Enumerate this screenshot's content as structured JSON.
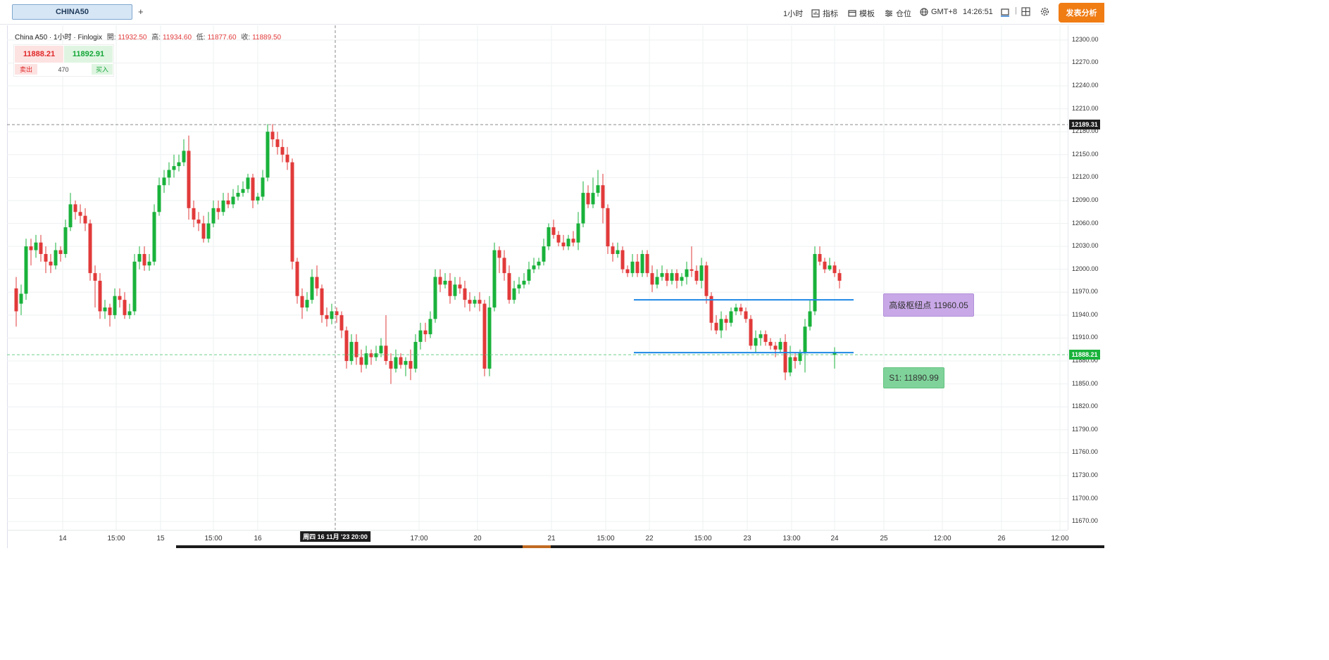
{
  "tabs": {
    "active_label": "CHINA50",
    "add_label": "+"
  },
  "toolbar": {
    "timeframe": "1小时",
    "indicators": "指标",
    "templates": "模板",
    "positions": "仓位",
    "timezone": "GMT+8",
    "clock": "14:26:51",
    "publish": "发表分析"
  },
  "legend": {
    "title": "China A50 · 1小时 · Finlogix",
    "open_label": "開:",
    "open_value": "11932.50",
    "high_label": "高:",
    "high_value": "11934.60",
    "low_label": "低:",
    "low_value": "11877.60",
    "close_label": "收:",
    "close_value": "11889.50"
  },
  "trade_widget": {
    "sell_price": "11888.21",
    "buy_price": "11892.91",
    "sell_label": "卖出",
    "quantity": "470",
    "buy_label": "买入"
  },
  "price_axis": {
    "ticks": [
      "12300.00",
      "12270.00",
      "12240.00",
      "12210.00",
      "12180.00",
      "12150.00",
      "12120.00",
      "12090.00",
      "12060.00",
      "12030.00",
      "12000.00",
      "11970.00",
      "11940.00",
      "11910.00",
      "11880.00",
      "11850.00",
      "11820.00",
      "11790.00",
      "11760.00",
      "11730.00",
      "11700.00",
      "11670.00"
    ],
    "crosshair_price": "12189.31",
    "last_price": "11888.21"
  },
  "time_axis": {
    "ticks": [
      "14",
      "15:00",
      "15",
      "15:00",
      "16",
      "17:00",
      "20",
      "21",
      "15:00",
      "22",
      "15:00",
      "23",
      "13:00",
      "24",
      "25",
      "12:00",
      "26",
      "12:00"
    ],
    "crosshair_time": "周四 16 11月 '23 20:00"
  },
  "annotations": {
    "pivot_label": "高级枢纽点 11960.05",
    "s1_label": "S1: 11890.99"
  },
  "colors": {
    "up": "#19b23b",
    "down": "#e23a3a",
    "level_line": "#1e88e5",
    "pivot_box": "#c9a8e8",
    "s1_box": "#7fd39a",
    "publish": "#f07c14"
  },
  "chart_data": {
    "type": "candlestick",
    "symbol": "China A50",
    "ylim": [
      11660,
      12310
    ],
    "levels": [
      11960.05,
      11890.99
    ],
    "candles": [
      [
        11975,
        11945,
        11990,
        11925
      ],
      [
        11955,
        11968,
        11980,
        11940
      ],
      [
        11968,
        12030,
        12040,
        11960
      ],
      [
        12030,
        12025,
        12040,
        12005
      ],
      [
        12025,
        12035,
        12045,
        12015
      ],
      [
        12035,
        12020,
        12045,
        12010
      ],
      [
        12020,
        12010,
        12030,
        11995
      ],
      [
        12010,
        12005,
        12020,
        11995
      ],
      [
        12005,
        12025,
        12035,
        12000
      ],
      [
        12025,
        12020,
        12030,
        12010
      ],
      [
        12020,
        12055,
        12065,
        12015
      ],
      [
        12055,
        12085,
        12100,
        12050
      ],
      [
        12085,
        12075,
        12090,
        12065
      ],
      [
        12075,
        12070,
        12085,
        12060
      ],
      [
        12070,
        12060,
        12080,
        12050
      ],
      [
        12060,
        11995,
        12065,
        11985
      ],
      [
        11995,
        11985,
        12005,
        11950
      ],
      [
        11985,
        11945,
        11995,
        11935
      ],
      [
        11945,
        11950,
        11960,
        11935
      ],
      [
        11950,
        11940,
        11955,
        11925
      ],
      [
        11940,
        11965,
        11975,
        11935
      ],
      [
        11965,
        11960,
        11975,
        11950
      ],
      [
        11960,
        11940,
        11970,
        11935
      ],
      [
        11940,
        11945,
        11955,
        11935
      ],
      [
        11945,
        12010,
        12020,
        11940
      ],
      [
        12010,
        12020,
        12030,
        12000
      ],
      [
        12020,
        12005,
        12030,
        11998
      ],
      [
        12005,
        12010,
        12020,
        11998
      ],
      [
        12010,
        12075,
        12085,
        12005
      ],
      [
        12075,
        12110,
        12120,
        12070
      ],
      [
        12110,
        12120,
        12130,
        12100
      ],
      [
        12120,
        12130,
        12140,
        12110
      ],
      [
        12130,
        12135,
        12150,
        12120
      ],
      [
        12135,
        12140,
        12150,
        12128
      ],
      [
        12140,
        12155,
        12170,
        12135
      ],
      [
        12155,
        12080,
        12175,
        12065
      ],
      [
        12080,
        12065,
        12090,
        12055
      ],
      [
        12065,
        12060,
        12075,
        12050
      ],
      [
        12060,
        12040,
        12070,
        12035
      ],
      [
        12040,
        12060,
        12075,
        12035
      ],
      [
        12060,
        12080,
        12090,
        12055
      ],
      [
        12080,
        12075,
        12090,
        12065
      ],
      [
        12075,
        12090,
        12100,
        12070
      ],
      [
        12090,
        12085,
        12100,
        12080
      ],
      [
        12085,
        12095,
        12105,
        12080
      ],
      [
        12095,
        12100,
        12110,
        12090
      ],
      [
        12100,
        12105,
        12115,
        12095
      ],
      [
        12105,
        12120,
        12125,
        12100
      ],
      [
        12120,
        12090,
        12125,
        12080
      ],
      [
        12090,
        12095,
        12100,
        12085
      ],
      [
        12095,
        12120,
        12130,
        12090
      ],
      [
        12120,
        12180,
        12190,
        12115
      ],
      [
        12180,
        12170,
        12190,
        12160
      ],
      [
        12170,
        12160,
        12180,
        12150
      ],
      [
        12160,
        12150,
        12170,
        12140
      ],
      [
        12150,
        12140,
        12160,
        12130
      ],
      [
        12140,
        12010,
        12145,
        12000
      ],
      [
        12010,
        11965,
        12015,
        11955
      ],
      [
        11965,
        11950,
        11975,
        11935
      ],
      [
        11950,
        11960,
        11970,
        11945
      ],
      [
        11960,
        11990,
        12000,
        11955
      ],
      [
        11990,
        11975,
        12005,
        11965
      ],
      [
        11975,
        11940,
        11980,
        11930
      ],
      [
        11940,
        11935,
        11950,
        11925
      ],
      [
        11935,
        11945,
        11955,
        11928
      ],
      [
        11945,
        11940,
        11950,
        11930
      ],
      [
        11940,
        11920,
        11945,
        11910
      ],
      [
        11920,
        11880,
        11925,
        11870
      ],
      [
        11880,
        11905,
        11915,
        11875
      ],
      [
        11905,
        11885,
        11915,
        11875
      ],
      [
        11885,
        11875,
        11895,
        11865
      ],
      [
        11875,
        11890,
        11900,
        11870
      ],
      [
        11890,
        11885,
        11895,
        11875
      ],
      [
        11885,
        11890,
        11900,
        11880
      ],
      [
        11890,
        11900,
        11910,
        11885
      ],
      [
        11900,
        11880,
        11940,
        11875
      ],
      [
        11880,
        11870,
        11890,
        11850
      ],
      [
        11870,
        11885,
        11895,
        11865
      ],
      [
        11885,
        11875,
        11890,
        11870
      ],
      [
        11875,
        11880,
        11885,
        11860
      ],
      [
        11880,
        11870,
        11895,
        11855
      ],
      [
        11870,
        11905,
        11915,
        11865
      ],
      [
        11905,
        11920,
        11930,
        11895
      ],
      [
        11920,
        11915,
        11930,
        11905
      ],
      [
        11915,
        11935,
        11945,
        11910
      ],
      [
        11935,
        11990,
        12000,
        11930
      ],
      [
        11990,
        11980,
        12000,
        11970
      ],
      [
        11980,
        11985,
        11995,
        11975
      ],
      [
        11985,
        11965,
        11995,
        11955
      ],
      [
        11965,
        11980,
        11990,
        11960
      ],
      [
        11980,
        11975,
        11990,
        11968
      ],
      [
        11975,
        11960,
        11985,
        11950
      ],
      [
        11960,
        11955,
        11970,
        11945
      ],
      [
        11955,
        11960,
        11965,
        11950
      ],
      [
        11960,
        11955,
        11970,
        11945
      ],
      [
        11955,
        11870,
        11960,
        11860
      ],
      [
        11870,
        11950,
        11965,
        11860
      ],
      [
        11950,
        12025,
        12035,
        11945
      ],
      [
        12025,
        12015,
        12030,
        11995
      ],
      [
        12015,
        11995,
        12025,
        11985
      ],
      [
        11995,
        11960,
        12005,
        11955
      ],
      [
        11960,
        11975,
        11985,
        11955
      ],
      [
        11975,
        11980,
        11990,
        11968
      ],
      [
        11980,
        11985,
        11995,
        11975
      ],
      [
        11985,
        12000,
        12010,
        11980
      ],
      [
        12000,
        12005,
        12015,
        11995
      ],
      [
        12005,
        12010,
        12015,
        12000
      ],
      [
        12010,
        12030,
        12040,
        12005
      ],
      [
        12030,
        12055,
        12060,
        12025
      ],
      [
        12055,
        12045,
        12065,
        12040
      ],
      [
        12045,
        12035,
        12050,
        12030
      ],
      [
        12035,
        12030,
        12045,
        12025
      ],
      [
        12030,
        12040,
        12045,
        12025
      ],
      [
        12040,
        12035,
        12050,
        12030
      ],
      [
        12035,
        12060,
        12075,
        12025
      ],
      [
        12060,
        12100,
        12115,
        12055
      ],
      [
        12100,
        12085,
        12110,
        12080
      ],
      [
        12085,
        12100,
        12120,
        12080
      ],
      [
        12100,
        12110,
        12130,
        12095
      ],
      [
        12110,
        12080,
        12125,
        12060
      ],
      [
        12080,
        12030,
        12085,
        12020
      ],
      [
        12030,
        12020,
        12035,
        12010
      ],
      [
        12020,
        12025,
        12035,
        12015
      ],
      [
        12025,
        12000,
        12030,
        11995
      ],
      [
        12000,
        11995,
        12005,
        11990
      ],
      [
        11995,
        12010,
        12020,
        11990
      ],
      [
        12010,
        11995,
        12020,
        11990
      ],
      [
        11995,
        12020,
        12025,
        11990
      ],
      [
        12020,
        11995,
        12025,
        11990
      ],
      [
        11995,
        11980,
        12005,
        11970
      ],
      [
        11980,
        11990,
        12000,
        11975
      ],
      [
        11990,
        11995,
        12005,
        11985
      ],
      [
        11995,
        11985,
        12000,
        11978
      ],
      [
        11985,
        11995,
        12000,
        11980
      ],
      [
        11995,
        11985,
        12000,
        11975
      ],
      [
        11985,
        11990,
        11995,
        11978
      ],
      [
        11990,
        12000,
        12010,
        11980
      ],
      [
        12000,
        11998,
        12030,
        11990
      ],
      [
        11998,
        11985,
        12005,
        11980
      ],
      [
        11985,
        12005,
        12015,
        11975
      ],
      [
        12005,
        11965,
        12010,
        11955
      ],
      [
        11965,
        11930,
        11970,
        11920
      ],
      [
        11930,
        11920,
        11940,
        11915
      ],
      [
        11920,
        11935,
        11945,
        11910
      ],
      [
        11935,
        11930,
        11940,
        11920
      ],
      [
        11930,
        11945,
        11950,
        11925
      ],
      [
        11945,
        11950,
        11955,
        11940
      ],
      [
        11950,
        11945,
        11955,
        11940
      ],
      [
        11945,
        11935,
        11950,
        11930
      ],
      [
        11935,
        11900,
        11940,
        11895
      ],
      [
        11900,
        11910,
        11920,
        11890
      ],
      [
        11910,
        11915,
        11920,
        11900
      ],
      [
        11915,
        11905,
        11920,
        11900
      ],
      [
        11905,
        11900,
        11910,
        11895
      ],
      [
        11900,
        11895,
        11905,
        11885
      ],
      [
        11895,
        11905,
        11910,
        11890
      ],
      [
        11905,
        11865,
        11915,
        11855
      ],
      [
        11865,
        11885,
        11900,
        11860
      ],
      [
        11885,
        11880,
        11890,
        11870
      ],
      [
        11880,
        11890,
        11895,
        11875
      ],
      [
        11890,
        11925,
        11935,
        11865
      ],
      [
        11925,
        11945,
        11960,
        11920
      ],
      [
        11945,
        12020,
        12030,
        11940
      ],
      [
        12020,
        12010,
        12030,
        12005
      ],
      [
        12010,
        12000,
        12015,
        11995
      ],
      [
        12000,
        12005,
        12015,
        11998
      ],
      [
        12005,
        11995,
        12010,
        11990
      ],
      [
        11995,
        11985,
        12000,
        11975
      ],
      [
        11888,
        11892,
        11898,
        11870
      ]
    ]
  }
}
